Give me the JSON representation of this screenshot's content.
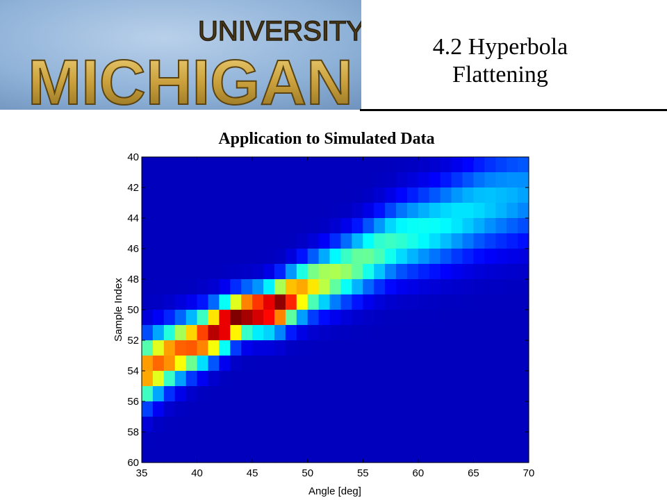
{
  "slide": {
    "title_line1": "4.2 Hyperbola",
    "title_line2": "Flattening"
  },
  "logo": {
    "top_text": "UNIVERSITY OF",
    "main_text": "MICHIGAN",
    "colors": {
      "background": "#8fb2d8",
      "gold": "#c9a03c"
    }
  },
  "chart_data": {
    "type": "heatmap",
    "title": "Application to Simulated Data",
    "xlabel": "Angle [deg]",
    "ylabel": "Sample Index",
    "xlim": [
      35,
      70
    ],
    "ylim": [
      40,
      60
    ],
    "y_reversed": true,
    "xticks": [
      35,
      40,
      45,
      50,
      55,
      60,
      65,
      70
    ],
    "yticks": [
      40,
      42,
      44,
      46,
      48,
      50,
      52,
      54,
      56,
      58,
      60
    ],
    "colormap": "jet",
    "grid_cols": 35,
    "grid_rows": 20,
    "ridge_points": [
      [
        35,
        54.2
      ],
      [
        38,
        52.8
      ],
      [
        41,
        51.7
      ],
      [
        44,
        50.3
      ],
      [
        47,
        49.9
      ],
      [
        50,
        48.6
      ],
      [
        54,
        47.2
      ],
      [
        58,
        45.5
      ],
      [
        62,
        44.5
      ],
      [
        66,
        43.2
      ],
      [
        70,
        42.3
      ]
    ],
    "peak": {
      "x": 45,
      "y": 50,
      "value": 1.0
    }
  }
}
